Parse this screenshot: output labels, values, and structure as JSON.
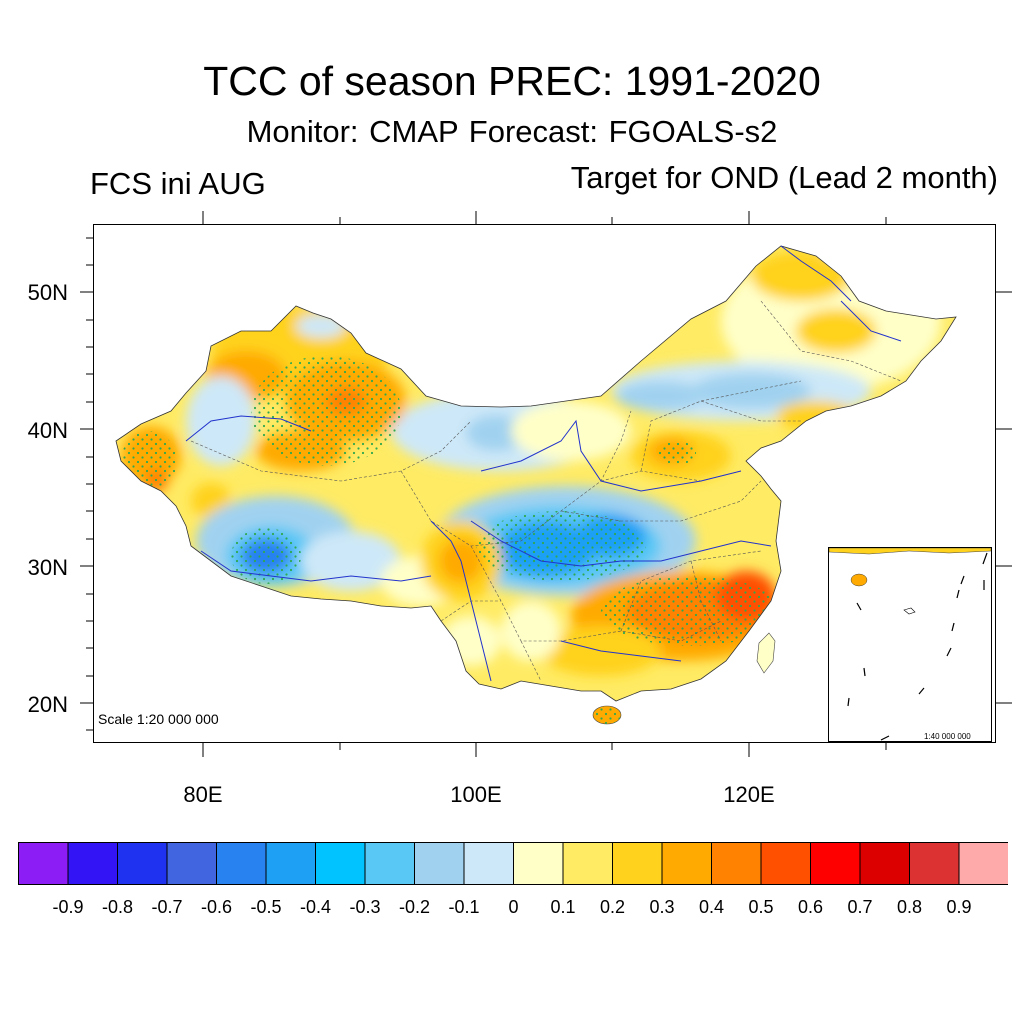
{
  "header": {
    "title": "TCC of season PREC: 1991-2020",
    "subtitle": "Monitor: CMAP   Forecast: FGOALS-s2",
    "left_label": "FCS ini AUG",
    "right_label": "Target for OND (Lead 2 month)"
  },
  "map": {
    "lat_labels": [
      "50N",
      "40N",
      "30N",
      "20N"
    ],
    "lon_labels": [
      "80E",
      "100E",
      "120E"
    ],
    "scale_label": "Scale 1:20 000 000",
    "inset_scale_label": "1:40 000 000"
  },
  "colorbar": {
    "colors": [
      "#8c1ef5",
      "#3214f5",
      "#1e32f0",
      "#4164e1",
      "#2882f0",
      "#1ea0f5",
      "#00c3ff",
      "#5ac8f5",
      "#a0d2f0",
      "#cde8f8",
      "#ffffc8",
      "#ffeb64",
      "#ffd21e",
      "#ffaa00",
      "#ff8200",
      "#ff5000",
      "#ff0000",
      "#dc0000",
      "#dc3232",
      "#ffaaaa"
    ],
    "labels": [
      "-0.9",
      "-0.8",
      "-0.7",
      "-0.6",
      "-0.5",
      "-0.4",
      "-0.3",
      "-0.2",
      "-0.1",
      "0",
      "0.1",
      "0.2",
      "0.3",
      "0.4",
      "0.5",
      "0.6",
      "0.7",
      "0.8",
      "0.9"
    ]
  }
}
